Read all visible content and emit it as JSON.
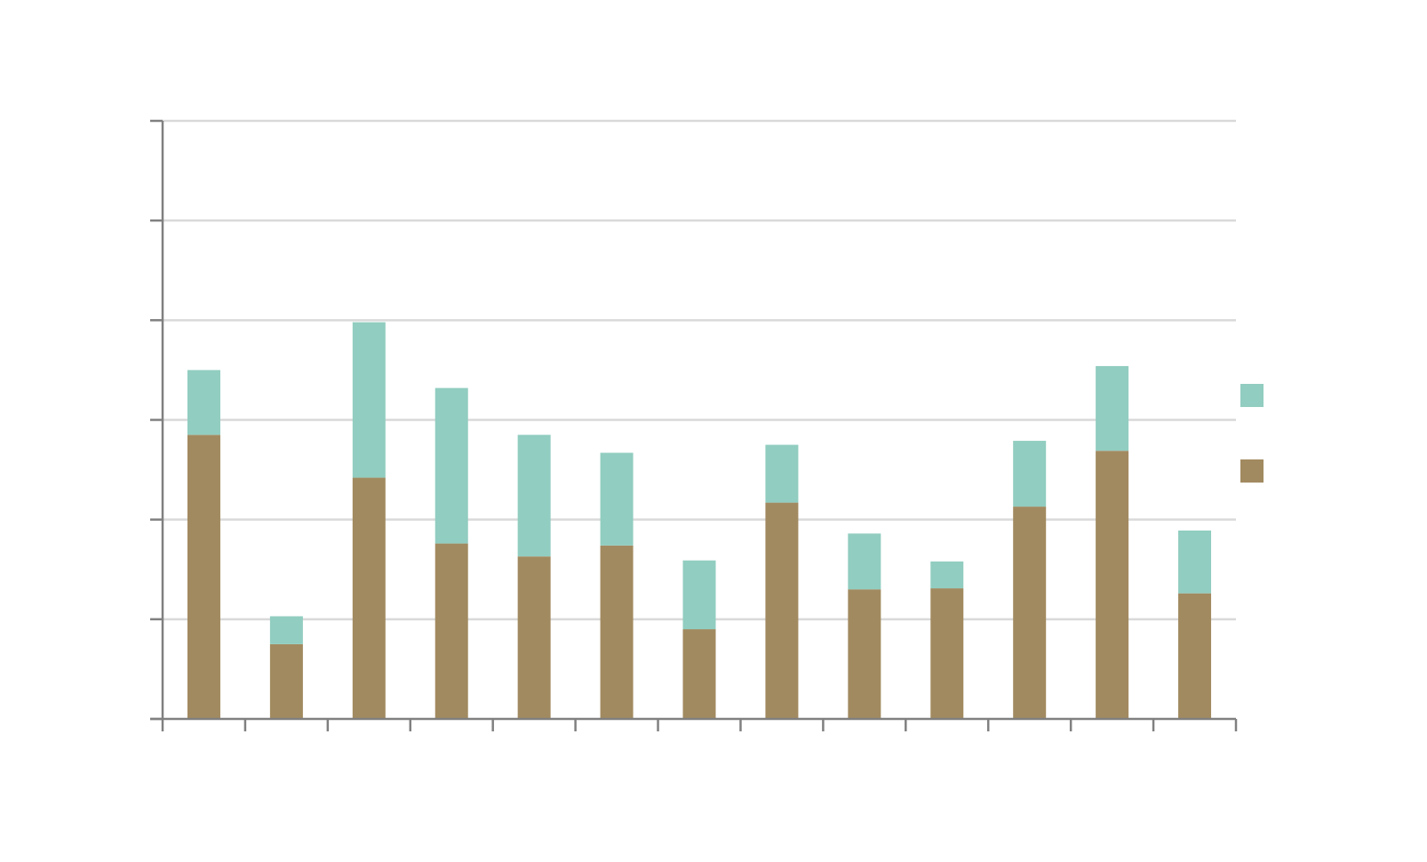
{
  "chart_data": {
    "type": "bar",
    "stacked": true,
    "title": "",
    "xlabel": "",
    "ylabel": "",
    "categories": [
      "",
      "",
      "",
      "",
      "",
      "",
      "",
      "",
      "",
      "",
      "",
      "",
      ""
    ],
    "series": [
      {
        "name": "",
        "color": "#a28a60",
        "values": [
          28.5,
          7.5,
          24.2,
          17.6,
          16.3,
          17.4,
          9.0,
          21.7,
          13.0,
          13.1,
          21.3,
          26.9,
          12.6
        ]
      },
      {
        "name": "",
        "color": "#91cdc0",
        "values": [
          6.5,
          2.8,
          15.6,
          15.6,
          12.2,
          9.3,
          6.9,
          5.8,
          5.6,
          2.7,
          6.6,
          8.5,
          6.3
        ]
      }
    ],
    "ylim": [
      0,
      60
    ],
    "yticks": [
      0,
      10,
      20,
      30,
      40,
      50,
      60
    ],
    "ytick_labels": [],
    "grid": true,
    "legend_position": "right"
  }
}
